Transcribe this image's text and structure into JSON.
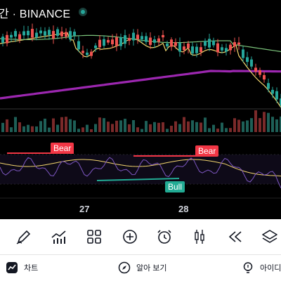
{
  "chart": {
    "title": "간 · BINANCE",
    "date_labels": [
      "27",
      "28"
    ],
    "signals": {
      "bear_1": "Bear",
      "bear_2": "Bear",
      "bull_1": "Bull"
    },
    "colors": {
      "up": "#26a69a",
      "down": "#ef5350",
      "ma_slow": "#9c27b0",
      "ma_fast": "#f5d76e",
      "ma_mid": "#7cc47c",
      "rsi": "#7e57c2",
      "rsi_signal": "#f5d76e"
    }
  },
  "toolbar": {
    "items": [
      {
        "icon": "draw-icon"
      },
      {
        "icon": "indicators-icon"
      },
      {
        "icon": "layout-icon"
      },
      {
        "icon": "add-icon"
      },
      {
        "icon": "alert-clock-icon"
      },
      {
        "icon": "candle-type-icon"
      },
      {
        "icon": "replay-icon"
      },
      {
        "icon": "layers-icon"
      }
    ]
  },
  "bottom_nav": {
    "chart_label": "차트",
    "explore_label": "알아 보기",
    "ideas_label": "아이디어"
  }
}
